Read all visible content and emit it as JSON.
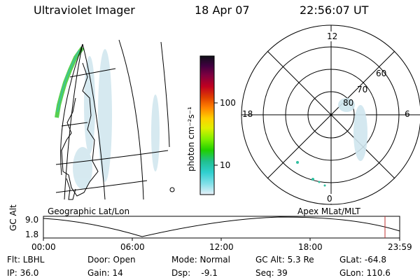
{
  "header": {
    "instrument": "Ultraviolet Imager",
    "date": "18 Apr 07",
    "time": "22:56:07 UT"
  },
  "left_panel": {
    "caption": "Geographic Lat/Lon"
  },
  "polar_panel": {
    "caption": "Apex MLat/MLT",
    "mlt_labels": {
      "top": "12",
      "left": "18",
      "right": "6",
      "bottom": "0"
    },
    "lat_labels": [
      "60",
      "70",
      "80"
    ]
  },
  "colorbar": {
    "unit_label": "photon cm⁻²s⁻¹",
    "ticks": [
      "100",
      "10"
    ],
    "colors": [
      "#101018",
      "#400040",
      "#800040",
      "#c00020",
      "#e04000",
      "#ff8000",
      "#ffd000",
      "#e0f000",
      "#80f000",
      "#20d000",
      "#20c090",
      "#30d0d0",
      "#80e0e8",
      "#c0e8f0",
      "#e8f0f8"
    ]
  },
  "timeline": {
    "ylabel": "GC Alt",
    "ytick_top": "9.0",
    "ytick_bottom": "1.8",
    "xticks": [
      "00:00",
      "06:00",
      "12:00",
      "18:00",
      "23:59"
    ],
    "marker_color": "#c03030"
  },
  "info": {
    "filter": "Flt: LBHL",
    "ip": "IP: 36.0",
    "door": "Door: Open",
    "gain": "Gain: 14",
    "mode": "Mode: Normal",
    "dsp": "Dsp:    -9.1",
    "gc_alt": "GC Alt: 5.3 Re",
    "seq": "Seq: 39",
    "glat": "GLat: -64.8",
    "glon": "GLon: 110.6"
  }
}
